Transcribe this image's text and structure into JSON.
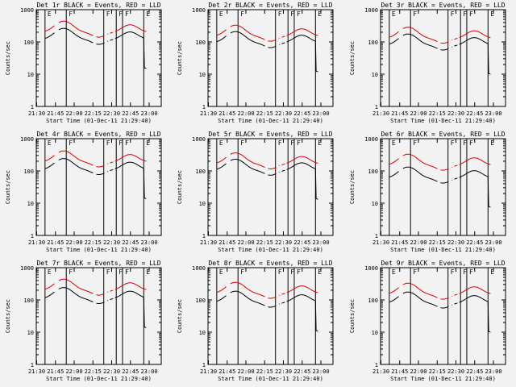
{
  "colors": {
    "events": "#000000",
    "lld": "#e00000",
    "background": "#f2f2f2"
  },
  "chart_data": [
    {
      "type": "line",
      "title": "Det 1r BLACK = Events, RED = LLD",
      "xlabel": "Start Time (01-Dec-11 21:29:40)",
      "ylabel": "Counts/sec",
      "xticks": [
        "21:30",
        "21:45",
        "22:00",
        "22:15",
        "22:30",
        "22:45",
        "23:00"
      ],
      "yticks": [
        "1",
        "10",
        "100",
        "1000"
      ],
      "ylim": [
        1,
        1000
      ],
      "yscale": "log",
      "x_range_min": [
        0,
        100
      ],
      "events_base": 120,
      "lld_base": 200,
      "gaps": [
        [
          15,
          18
        ],
        [
          46,
          48
        ],
        [
          55,
          57
        ],
        [
          58,
          59
        ],
        [
          62,
          63
        ]
      ],
      "flags": [
        {
          "label": "E",
          "x": 0
        },
        {
          "label": "F",
          "x": 17
        },
        {
          "label": "F",
          "x": 47
        },
        {
          "label": "F",
          "x": 57
        },
        {
          "label": "F",
          "x": 62
        },
        {
          "label": "E",
          "x": 79
        }
      ],
      "series": [
        {
          "name": "BLACK = Events"
        },
        {
          "name": "RED = LLD"
        }
      ]
    },
    {
      "type": "line",
      "title": "Det 2r BLACK = Events, RED = LLD",
      "xlabel": "Start Time (01-Dec-11 21:29:40)",
      "ylabel": "Counts/sec",
      "xticks": [
        "21:30",
        "21:45",
        "22:00",
        "22:15",
        "22:30",
        "22:45",
        "23:00"
      ],
      "yticks": [
        "1",
        "10",
        "100",
        "1000"
      ],
      "ylim": [
        1,
        1000
      ],
      "yscale": "log",
      "events_base": 95,
      "lld_base": 150,
      "gaps": [
        [
          15,
          18
        ],
        [
          46,
          48
        ],
        [
          55,
          57
        ],
        [
          58,
          59
        ],
        [
          62,
          63
        ]
      ],
      "flags": [
        {
          "label": "E",
          "x": 0
        },
        {
          "label": "F",
          "x": 17
        },
        {
          "label": "F",
          "x": 47
        },
        {
          "label": "F",
          "x": 57
        },
        {
          "label": "F",
          "x": 62
        },
        {
          "label": "E",
          "x": 79
        }
      ],
      "series": [
        {
          "name": "BLACK = Events"
        },
        {
          "name": "RED = LLD"
        }
      ]
    },
    {
      "type": "line",
      "title": "Det 3r BLACK = Events, RED = LLD",
      "xlabel": "Start Time (01-Dec-11 21:29:40)",
      "ylabel": "Counts/sec",
      "xticks": [
        "21:30",
        "21:45",
        "22:00",
        "22:15",
        "22:30",
        "22:45",
        "23:00"
      ],
      "yticks": [
        "1",
        "10",
        "100",
        "1000"
      ],
      "ylim": [
        1,
        1000
      ],
      "yscale": "log",
      "events_base": 80,
      "lld_base": 130,
      "gaps": [
        [
          15,
          18
        ],
        [
          46,
          48
        ],
        [
          55,
          57
        ],
        [
          58,
          59
        ],
        [
          62,
          63
        ]
      ],
      "flags": [
        {
          "label": "E",
          "x": 0
        },
        {
          "label": "F",
          "x": 17
        },
        {
          "label": "F",
          "x": 47
        },
        {
          "label": "F",
          "x": 57
        },
        {
          "label": "F",
          "x": 62
        },
        {
          "label": "E",
          "x": 79
        }
      ],
      "series": [
        {
          "name": "BLACK = Events"
        },
        {
          "name": "RED = LLD"
        }
      ]
    },
    {
      "type": "line",
      "title": "Det 4r BLACK = Events, RED = LLD",
      "xlabel": "Start Time (01-Dec-11 21:29:40)",
      "ylabel": "Counts/sec",
      "xticks": [
        "21:30",
        "21:45",
        "22:00",
        "22:15",
        "22:30",
        "22:45",
        "23:00"
      ],
      "yticks": [
        "1",
        "10",
        "100",
        "1000"
      ],
      "ylim": [
        1,
        1000
      ],
      "yscale": "log",
      "events_base": 110,
      "lld_base": 190,
      "gaps": [
        [
          15,
          18
        ],
        [
          46,
          48
        ],
        [
          55,
          57
        ],
        [
          58,
          59
        ],
        [
          62,
          63
        ]
      ],
      "flags": [
        {
          "label": "E",
          "x": 0
        },
        {
          "label": "F",
          "x": 17
        },
        {
          "label": "F",
          "x": 47
        },
        {
          "label": "F",
          "x": 57
        },
        {
          "label": "F",
          "x": 62
        },
        {
          "label": "E",
          "x": 79
        }
      ],
      "series": [
        {
          "name": "BLACK = Events"
        },
        {
          "name": "RED = LLD"
        }
      ]
    },
    {
      "type": "line",
      "title": "Det 5r BLACK = Events, RED = LLD",
      "xlabel": "Start Time (01-Dec-11 21:29:40)",
      "ylabel": "Counts/sec",
      "xticks": [
        "21:30",
        "21:45",
        "22:00",
        "22:15",
        "22:30",
        "22:45",
        "23:00"
      ],
      "yticks": [
        "1",
        "10",
        "100",
        "1000"
      ],
      "ylim": [
        1,
        1000
      ],
      "yscale": "log",
      "events_base": 105,
      "lld_base": 165,
      "gaps": [
        [
          15,
          18
        ],
        [
          46,
          48
        ],
        [
          55,
          57
        ],
        [
          58,
          59
        ],
        [
          62,
          63
        ]
      ],
      "flags": [
        {
          "label": "E",
          "x": 0
        },
        {
          "label": "F",
          "x": 17
        },
        {
          "label": "F",
          "x": 47
        },
        {
          "label": "F",
          "x": 57
        },
        {
          "label": "F",
          "x": 62
        },
        {
          "label": "E",
          "x": 79
        }
      ],
      "series": [
        {
          "name": "BLACK = Events"
        },
        {
          "name": "RED = LLD"
        }
      ]
    },
    {
      "type": "line",
      "title": "Det 6r BLACK = Events, RED = LLD",
      "xlabel": "Start Time (01-Dec-11 21:29:40)",
      "ylabel": "Counts/sec",
      "xticks": [
        "21:30",
        "21:45",
        "22:00",
        "22:15",
        "22:30",
        "22:45",
        "23:00"
      ],
      "yticks": [
        "1",
        "10",
        "100",
        "1000"
      ],
      "ylim": [
        1,
        1000
      ],
      "yscale": "log",
      "events_base": 60,
      "lld_base": 150,
      "gaps": [
        [
          15,
          18
        ],
        [
          46,
          48
        ],
        [
          55,
          57
        ],
        [
          58,
          59
        ],
        [
          62,
          63
        ]
      ],
      "flags": [
        {
          "label": "E",
          "x": 0
        },
        {
          "label": "F",
          "x": 17
        },
        {
          "label": "F",
          "x": 47
        },
        {
          "label": "F",
          "x": 57
        },
        {
          "label": "F",
          "x": 62
        },
        {
          "label": "E",
          "x": 79
        }
      ],
      "series": [
        {
          "name": "BLACK = Events"
        },
        {
          "name": "RED = LLD"
        }
      ]
    },
    {
      "type": "line",
      "title": "Det 7r BLACK = Events, RED = LLD",
      "xlabel": "Start Time (01-Dec-11 21:29:40)",
      "ylabel": "Counts/sec",
      "xticks": [
        "21:30",
        "21:45",
        "22:00",
        "22:15",
        "22:30",
        "22:45",
        "23:00"
      ],
      "yticks": [
        "1",
        "10",
        "100",
        "1000"
      ],
      "ylim": [
        1,
        1000
      ],
      "yscale": "log",
      "events_base": 110,
      "lld_base": 200,
      "gaps": [
        [
          15,
          18
        ],
        [
          46,
          48
        ],
        [
          55,
          57
        ],
        [
          58,
          59
        ],
        [
          62,
          63
        ]
      ],
      "flags": [
        {
          "label": "E",
          "x": 0
        },
        {
          "label": "F",
          "x": 17
        },
        {
          "label": "F",
          "x": 47
        },
        {
          "label": "F",
          "x": 57
        },
        {
          "label": "F",
          "x": 62
        },
        {
          "label": "E",
          "x": 79
        }
      ],
      "series": [
        {
          "name": "BLACK = Events"
        },
        {
          "name": "RED = LLD"
        }
      ]
    },
    {
      "type": "line",
      "title": "Det 8r BLACK = Events, RED = LLD",
      "xlabel": "Start Time (01-Dec-11 21:29:40)",
      "ylabel": "Counts/sec",
      "xticks": [
        "21:30",
        "21:45",
        "22:00",
        "22:15",
        "22:30",
        "22:45",
        "23:00"
      ],
      "yticks": [
        "1",
        "10",
        "100",
        "1000"
      ],
      "ylim": [
        1,
        1000
      ],
      "yscale": "log",
      "events_base": 85,
      "lld_base": 160,
      "gaps": [
        [
          15,
          18
        ],
        [
          46,
          48
        ],
        [
          55,
          57
        ],
        [
          58,
          59
        ],
        [
          62,
          63
        ]
      ],
      "flags": [
        {
          "label": "E",
          "x": 0
        },
        {
          "label": "F",
          "x": 17
        },
        {
          "label": "F",
          "x": 47
        },
        {
          "label": "F",
          "x": 57
        },
        {
          "label": "F",
          "x": 62
        },
        {
          "label": "E",
          "x": 79
        }
      ],
      "series": [
        {
          "name": "BLACK = Events"
        },
        {
          "name": "RED = LLD"
        }
      ]
    },
    {
      "type": "line",
      "title": "Det 9r BLACK = Events, RED = LLD",
      "xlabel": "Start Time (01-Dec-11 21:29:40)",
      "ylabel": "Counts/sec",
      "xticks": [
        "21:30",
        "21:45",
        "22:00",
        "22:15",
        "22:30",
        "22:45",
        "23:00"
      ],
      "yticks": [
        "1",
        "10",
        "100",
        "1000"
      ],
      "ylim": [
        1,
        1000
      ],
      "yscale": "log",
      "events_base": 80,
      "lld_base": 150,
      "gaps": [
        [
          15,
          18
        ],
        [
          46,
          48
        ],
        [
          55,
          57
        ],
        [
          58,
          59
        ],
        [
          62,
          63
        ]
      ],
      "flags": [
        {
          "label": "E",
          "x": 0
        },
        {
          "label": "F",
          "x": 17
        },
        {
          "label": "F",
          "x": 47
        },
        {
          "label": "F",
          "x": 57
        },
        {
          "label": "F",
          "x": 62
        },
        {
          "label": "E",
          "x": 79
        }
      ],
      "series": [
        {
          "name": "BLACK = Events"
        },
        {
          "name": "RED = LLD"
        }
      ]
    }
  ]
}
